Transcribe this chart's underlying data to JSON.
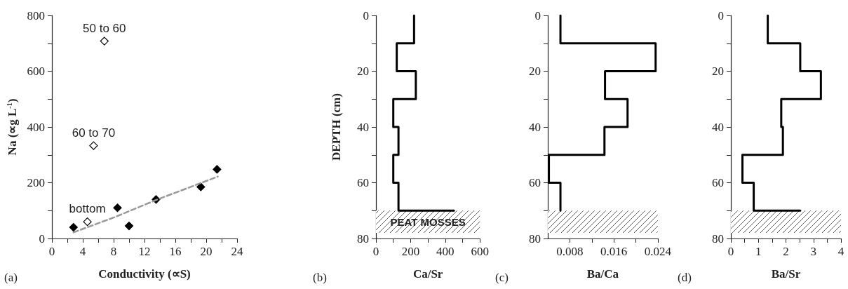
{
  "chart_data": [
    {
      "type": "scatter",
      "xlabel": "Conductivity (∝S)",
      "ylabel": "Na (∝g L$^{-1}$)",
      "xlim": [
        0,
        24
      ],
      "ylim": [
        0,
        800
      ],
      "xticks": [
        0,
        {
          "value": 2,
          "label": null
        },
        4,
        {
          "value": 6,
          "label": null
        },
        8,
        {
          "value": 10,
          "label": null
        },
        12,
        {
          "value": 14,
          "label": null
        },
        16,
        {
          "value": 18,
          "label": null
        },
        20,
        {
          "value": 22,
          "label": null
        },
        24
      ],
      "yticks": [
        0,
        {
          "value": 100,
          "label": null
        },
        200,
        {
          "value": 300,
          "label": null
        },
        400,
        {
          "value": 500,
          "label": null
        },
        600,
        {
          "value": 700,
          "label": null
        },
        800
      ],
      "grid": false,
      "marker": "diamond",
      "series": [
        {
          "color": "#000000",
          "x": [
            2.8,
            8.5,
            10,
            13.5,
            19.3,
            21.4
          ],
          "values": [
            40,
            110,
            45,
            140,
            185,
            248
          ]
        },
        {
          "color": "#ffffff",
          "x": [
            6.8,
            5.4,
            4.6
          ],
          "values": [
            708,
            333,
            60
          ]
        },
        {
          "type": "line",
          "color": "#999999",
          "line_style": "dashed",
          "marker": "none",
          "x": [
            2.8,
            8,
            13.5,
            21.5
          ],
          "values": [
            22,
            75,
            138,
            222
          ]
        }
      ],
      "annotations": [
        {
          "text": "50 to 60",
          "x": 6.8,
          "y": 708
        },
        {
          "text": "60 to 70",
          "x": 5.4,
          "y": 333
        },
        {
          "text": "bottom",
          "x": 4.6,
          "y": 60
        },
        "(a)"
      ]
    },
    {
      "type": "line",
      "xlabel": "Ca/Sr",
      "ylabel": "DEPTH (cm)",
      "xlim": [
        0,
        600
      ],
      "ylim": [
        80,
        0
      ],
      "xticks": [
        0,
        {
          "value": 100,
          "label": null
        },
        200,
        {
          "value": 300,
          "label": null
        },
        400,
        {
          "value": 500,
          "label": null
        },
        600
      ],
      "yticks": [
        0,
        {
          "value": 10,
          "label": null
        },
        20,
        {
          "value": 30,
          "label": null
        },
        40,
        {
          "value": 50,
          "label": null
        },
        60,
        {
          "value": 70,
          "label": null
        },
        80
      ],
      "grid": false,
      "marker": "none",
      "series": [
        {
          "color": "#000000",
          "x": [
            220,
            220,
            120,
            120,
            230,
            230,
            100,
            100,
            130,
            130,
            100,
            100,
            130,
            130,
            450
          ],
          "values": [
            0,
            10,
            10,
            20,
            20,
            30,
            30,
            40,
            40,
            50,
            50,
            60,
            60,
            70,
            70
          ]
        }
      ],
      "bands": [
        {
          "axis": "y",
          "from": 70,
          "to": 78,
          "label": "PEAT MOSSES"
        }
      ],
      "annotations": [
        "(b)"
      ]
    },
    {
      "type": "line",
      "xlabel": "Ba/Ca",
      "xlim": [
        0.004,
        0.024
      ],
      "ylim": [
        80,
        0
      ],
      "xticks": [
        0.008,
        {
          "value": 0.012,
          "label": null
        },
        0.016,
        {
          "value": 0.02,
          "label": null
        },
        0.024
      ],
      "yticks": [
        0,
        {
          "value": 10,
          "label": null
        },
        20,
        {
          "value": 30,
          "label": null
        },
        40,
        {
          "value": 50,
          "label": null
        },
        60,
        {
          "value": 70,
          "label": null
        },
        80
      ],
      "grid": false,
      "marker": "none",
      "series": [
        {
          "color": "#000000",
          "x": [
            0.0063,
            0.0063,
            0.0236,
            0.0236,
            0.0144,
            0.0144,
            0.0185,
            0.0185,
            0.0143,
            0.0143,
            0.0042,
            0.0042,
            0.0063,
            0.0063
          ],
          "values": [
            0,
            10,
            10,
            20,
            20,
            30,
            30,
            40,
            40,
            50,
            50,
            60,
            60,
            70
          ]
        }
      ],
      "bands": [
        {
          "axis": "y",
          "from": 70,
          "to": 78,
          "label": null
        }
      ],
      "annotations": [
        "(c)"
      ]
    },
    {
      "type": "line",
      "xlabel": "Ba/Sr",
      "xlim": [
        0,
        4
      ],
      "ylim": [
        80,
        0
      ],
      "xticks": [
        0,
        {
          "value": 0.5,
          "label": null
        },
        1,
        {
          "value": 1.5,
          "label": null
        },
        2,
        {
          "value": 2.5,
          "label": null
        },
        3,
        {
          "value": 3.5,
          "label": null
        },
        4
      ],
      "yticks": [
        0,
        {
          "value": 10,
          "label": null
        },
        20,
        {
          "value": 30,
          "label": null
        },
        40,
        {
          "value": 50,
          "label": null
        },
        60,
        {
          "value": 70,
          "label": null
        },
        80
      ],
      "grid": false,
      "marker": "none",
      "series": [
        {
          "color": "#000000",
          "x": [
            1.34,
            1.34,
            2.52,
            2.52,
            3.27,
            3.27,
            1.83,
            1.83,
            1.89,
            1.89,
            0.42,
            0.42,
            0.83,
            0.83,
            2.52
          ],
          "values": [
            0,
            10,
            10,
            20,
            20,
            30,
            30,
            40,
            40,
            50,
            50,
            60,
            60,
            70,
            70
          ]
        }
      ],
      "bands": [
        {
          "axis": "y",
          "from": 70,
          "to": 78,
          "label": null
        }
      ],
      "annotations": [
        "(d)"
      ]
    }
  ]
}
